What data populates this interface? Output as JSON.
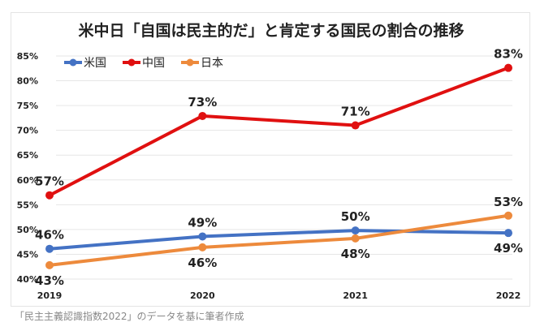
{
  "chart_data": {
    "type": "line",
    "title": "米中日「自国は民主的だ」と肯定する国民の割合の推移",
    "categories": [
      "2019",
      "2020",
      "2021",
      "2022"
    ],
    "ylim": [
      40,
      85
    ],
    "yticks": [
      "40%",
      "45%",
      "50%",
      "55%",
      "60%",
      "65%",
      "70%",
      "75%",
      "80%",
      "85%"
    ],
    "grid": true,
    "legend_placement": "top-left",
    "series": [
      {
        "name": "米国",
        "color": "#4472C4",
        "values": [
          46.1,
          48.6,
          49.8,
          49.3
        ],
        "labels": [
          "46%",
          "49%",
          "50%",
          "49%"
        ],
        "label_pos": [
          "above",
          "above",
          "above",
          "below"
        ]
      },
      {
        "name": "中国",
        "color": "#E01010",
        "values": [
          56.9,
          72.9,
          71.0,
          82.6
        ],
        "labels": [
          "57%",
          "73%",
          "71%",
          "83%"
        ],
        "label_pos": [
          "above",
          "above",
          "above",
          "above"
        ]
      },
      {
        "name": "日本",
        "color": "#ED8A3C",
        "values": [
          42.8,
          46.4,
          48.2,
          52.8
        ],
        "labels": [
          "43%",
          "46%",
          "48%",
          "53%"
        ],
        "label_pos": [
          "below",
          "below",
          "below",
          "above"
        ]
      }
    ]
  },
  "caption": "「民主主義認識指数2022」のデータを基に筆者作成"
}
